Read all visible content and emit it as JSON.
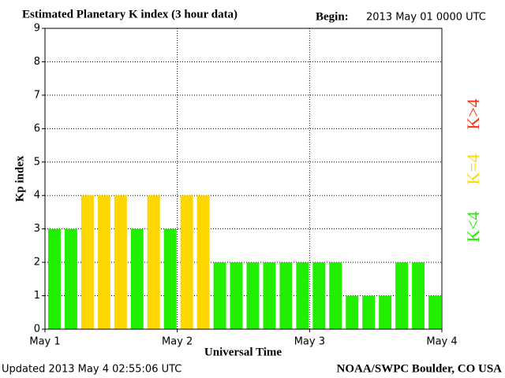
{
  "chart_data": {
    "type": "bar",
    "title": "Estimated Planetary K index (3 hour data)",
    "begin_label": "Begin:",
    "begin_value": "2013 May 01 0000 UTC",
    "ylabel": "Kp index",
    "xlabel": "Universal Time",
    "updated": "Updated 2013 May  4 02:55:06 UTC",
    "credit": "NOAA/SWPC Boulder, CO USA",
    "categories": [
      null,
      null,
      null,
      null,
      null,
      null,
      null,
      null,
      null,
      null,
      null,
      null,
      null,
      null,
      null,
      null,
      null,
      null,
      null,
      null,
      null,
      null,
      null,
      null
    ],
    "values": [
      3,
      3,
      4,
      4,
      4,
      3,
      4,
      3,
      4,
      4,
      2,
      2,
      2,
      2,
      2,
      2,
      2,
      2,
      1,
      1,
      1,
      2,
      2,
      1
    ],
    "colors": [
      "#22ee00",
      "#22ee00",
      "#ffd700",
      "#ffd700",
      "#ffd700",
      "#22ee00",
      "#ffd700",
      "#22ee00",
      "#ffd700",
      "#ffd700",
      "#22ee00",
      "#22ee00",
      "#22ee00",
      "#22ee00",
      "#22ee00",
      "#22ee00",
      "#22ee00",
      "#22ee00",
      "#22ee00",
      "#22ee00",
      "#22ee00",
      "#22ee00",
      "#22ee00",
      "#22ee00"
    ],
    "xtick_labels": [
      "May 1",
      "May 2",
      "May 3",
      "May 4"
    ],
    "ylim": [
      0,
      9
    ],
    "yticks": [
      0,
      1,
      2,
      3,
      4,
      5,
      6,
      7,
      8,
      9
    ],
    "grid": true,
    "legend": [
      {
        "label": "K>4",
        "color": "#ff3010"
      },
      {
        "label": "K=4",
        "color": "#ffd700"
      },
      {
        "label": "K<4",
        "color": "#22ee00"
      }
    ]
  }
}
